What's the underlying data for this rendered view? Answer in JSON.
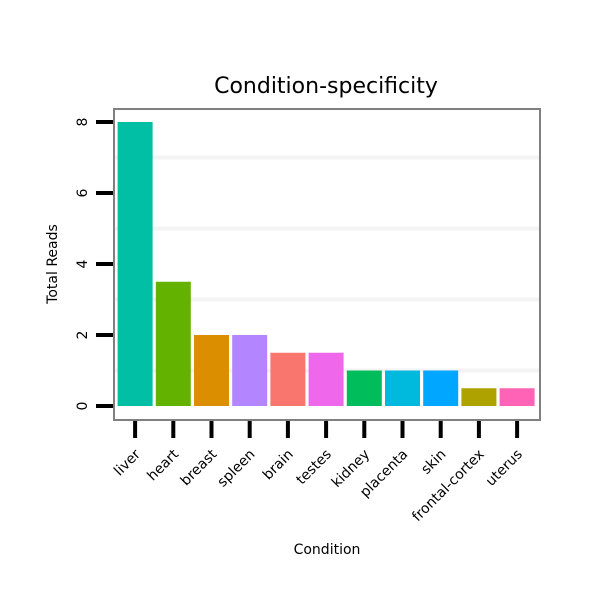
{
  "chart_data": {
    "type": "bar",
    "title": "Condition-specificity",
    "xlabel": "Condition",
    "ylabel": "Total Reads",
    "categories": [
      "liver",
      "heart",
      "breast",
      "spleen",
      "brain",
      "testes",
      "kidney",
      "placenta",
      "skin",
      "frontal-cortex",
      "uterus"
    ],
    "values": [
      8,
      3.5,
      2,
      2,
      1.5,
      1.5,
      1,
      1,
      1,
      0.5,
      0.5
    ],
    "colors": [
      "#00BFA4",
      "#64B200",
      "#DB8E00",
      "#B385FF",
      "#F8766D",
      "#EF67EB",
      "#00BD5C",
      "#00BADE",
      "#00A6FF",
      "#AEA200",
      "#FF63B6"
    ],
    "yticks": [
      0,
      2,
      4,
      6,
      8
    ],
    "ylim": [
      -0.4,
      8.4
    ],
    "grid": true,
    "legend": "none"
  }
}
